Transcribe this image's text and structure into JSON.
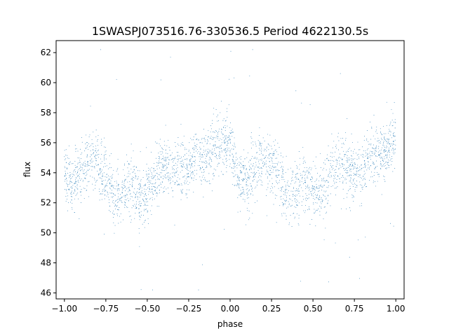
{
  "chart_data": {
    "type": "scatter",
    "title": "1SWASPJ073516.76-330536.5 Period 4622130.5s",
    "xlabel": "phase",
    "ylabel": "flux",
    "xlim": [
      -1.05,
      1.05
    ],
    "ylim": [
      45.6,
      62.8
    ],
    "xticks": [
      -1.0,
      -0.75,
      -0.5,
      -0.25,
      0.0,
      0.25,
      0.5,
      0.75,
      1.0
    ],
    "xtick_labels": [
      "−1.00",
      "−0.75",
      "−0.50",
      "−0.25",
      "0.00",
      "0.25",
      "0.50",
      "0.75",
      "1.00"
    ],
    "yticks": [
      46,
      48,
      50,
      52,
      54,
      56,
      58,
      60,
      62
    ],
    "ytick_labels": [
      "46",
      "48",
      "50",
      "52",
      "54",
      "56",
      "58",
      "60",
      "62"
    ],
    "grid": false,
    "marker_color": "#1f77b4",
    "series": [
      {
        "phase_flux_profile": [
          [
            -1.0,
            53.7
          ],
          [
            -0.95,
            53.4
          ],
          [
            -0.9,
            54.3
          ],
          [
            -0.85,
            54.8
          ],
          [
            -0.8,
            54.6
          ],
          [
            -0.75,
            53.8
          ],
          [
            -0.7,
            52.2
          ],
          [
            -0.65,
            52.9
          ],
          [
            -0.6,
            53.4
          ],
          [
            -0.55,
            52.7
          ],
          [
            -0.5,
            52.5
          ],
          [
            -0.45,
            53.8
          ],
          [
            -0.4,
            54.5
          ],
          [
            -0.35,
            54.4
          ],
          [
            -0.3,
            54.0
          ],
          [
            -0.25,
            54.1
          ],
          [
            -0.2,
            55.2
          ],
          [
            -0.15,
            55.0
          ],
          [
            -0.1,
            55.6
          ],
          [
            -0.05,
            56.1
          ],
          [
            0.0,
            55.9
          ],
          [
            0.05,
            53.7
          ],
          [
            0.1,
            53.4
          ],
          [
            0.15,
            54.3
          ],
          [
            0.2,
            54.8
          ],
          [
            0.25,
            54.6
          ],
          [
            0.3,
            53.8
          ],
          [
            0.35,
            52.2
          ],
          [
            0.4,
            52.9
          ],
          [
            0.45,
            53.4
          ],
          [
            0.5,
            52.7
          ],
          [
            0.55,
            52.5
          ],
          [
            0.6,
            53.8
          ],
          [
            0.65,
            54.5
          ],
          [
            0.7,
            54.4
          ],
          [
            0.75,
            54.0
          ],
          [
            0.8,
            54.1
          ],
          [
            0.85,
            55.2
          ],
          [
            0.9,
            55.0
          ],
          [
            0.95,
            55.6
          ],
          [
            1.0,
            56.1
          ]
        ],
        "scatter_sd": 1.0,
        "point_count": 3000
      }
    ]
  }
}
